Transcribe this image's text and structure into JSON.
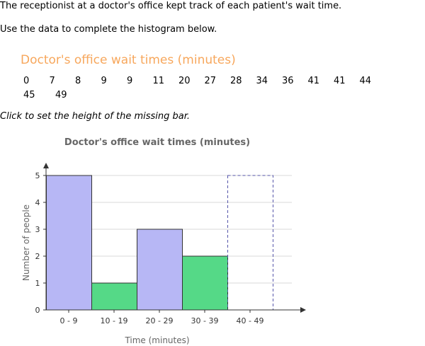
{
  "intro": {
    "line1": "The receptionist at a doctor's office kept track of each patient's wait time.",
    "line2": "Use the data to complete the histogram below."
  },
  "dataset": {
    "title": "Doctor's office wait times (minutes)",
    "values": [
      "0",
      "7",
      "8",
      "9",
      "9",
      "11",
      "20",
      "27",
      "28",
      "34",
      "36",
      "41",
      "41",
      "44",
      "45",
      "49"
    ]
  },
  "instruction": "Click to set the height of the missing bar.",
  "colors": {
    "title_orange": "#f7a75c",
    "bar_blue": "#b7b7f5",
    "bar_green": "#55d987",
    "dashed_outline": "#5555aa"
  },
  "chart_data": {
    "type": "bar",
    "title": "Doctor's office wait times (minutes)",
    "xlabel": "Time (minutes)",
    "ylabel": "Number of people",
    "categories": [
      "0 - 9",
      "10 - 19",
      "20 - 29",
      "30 - 39",
      "40 - 49"
    ],
    "values": [
      5,
      1,
      3,
      2,
      null
    ],
    "ylim": [
      0,
      5
    ],
    "yticks": [
      "0",
      "1",
      "2",
      "3",
      "4",
      "5"
    ],
    "grid": true,
    "missing_bar_index": 4
  }
}
